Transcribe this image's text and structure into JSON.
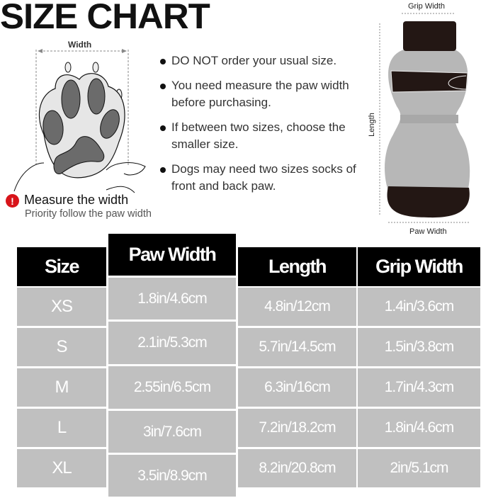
{
  "title": "SIZE CHART",
  "paw_diagram": {
    "width_label": "Width",
    "measure_title": "Measure the width",
    "measure_subtitle": "Priority follow the paw width",
    "warning_icon": "exclamation-circle-icon",
    "warning_color": "#d8141a"
  },
  "tips": [
    "DO NOT order your usual size.",
    "You need measure the paw width before purchasing.",
    "If between two sizes, choose the smaller size.",
    "Dogs may need two sizes socks of front and back paw."
  ],
  "sock_diagram": {
    "grip_width_label": "Grip Width",
    "length_label": "Length",
    "paw_width_label": "Paw Width"
  },
  "table": {
    "headers": [
      "Size",
      "Paw Width",
      "Length",
      "Grip Width"
    ],
    "rows": [
      [
        "XS",
        "1.8in/4.6cm",
        "4.8in/12cm",
        "1.4in/3.6cm"
      ],
      [
        "S",
        "2.1in/5.3cm",
        "5.7in/14.5cm",
        "1.5in/3.8cm"
      ],
      [
        "M",
        "2.55in/6.5cm",
        "6.3in/16cm",
        "1.7in/4.3cm"
      ],
      [
        "L",
        "3in/7.6cm",
        "7.2in/18.2cm",
        "1.8in/4.6cm"
      ],
      [
        "XL",
        "3.5in/8.9cm",
        "8.2in/20.8cm",
        "2in/5.1cm"
      ]
    ],
    "header_color": "#000000",
    "cell_color": "#c0c0c0"
  }
}
